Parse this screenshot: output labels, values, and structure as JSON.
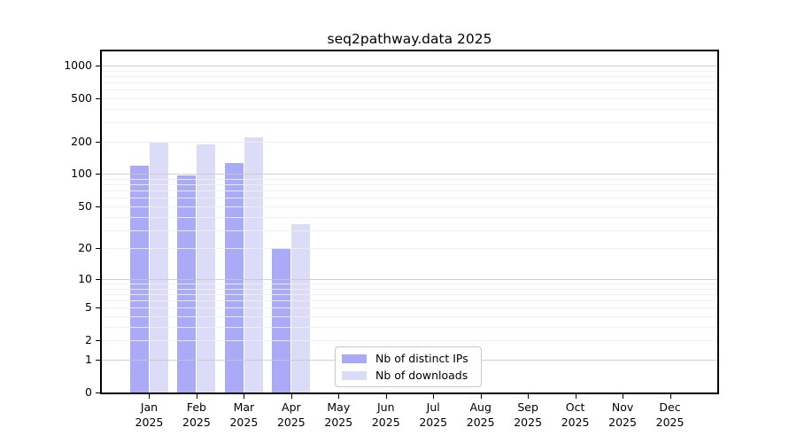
{
  "title": "seq2pathway.data 2025",
  "colors": {
    "distinct_ips": "#aaaaf7",
    "downloads": "#dcdcf9",
    "grid_major": "#c9c9c9",
    "grid_minor": "#efefef",
    "spine": "#000000",
    "background": "#ffffff"
  },
  "legend": {
    "items": [
      {
        "label": "Nb of distinct IPs",
        "color_key": "distinct_ips"
      },
      {
        "label": "Nb of downloads",
        "color_key": "downloads"
      }
    ]
  },
  "chart_data": {
    "type": "bar",
    "title": "seq2pathway.data 2025",
    "categories": [
      "Jan 2025",
      "Feb 2025",
      "Mar 2025",
      "Apr 2025",
      "May 2025",
      "Jun 2025",
      "Jul 2025",
      "Aug 2025",
      "Sep 2025",
      "Oct 2025",
      "Nov 2025",
      "Dec 2025"
    ],
    "x_tick_month": [
      "Jan",
      "Feb",
      "Mar",
      "Apr",
      "May",
      "Jun",
      "Jul",
      "Aug",
      "Sep",
      "Oct",
      "Nov",
      "Dec"
    ],
    "x_tick_year": "2025",
    "series": [
      {
        "name": "Nb of distinct IPs",
        "color_key": "distinct_ips",
        "values": [
          120,
          98,
          126,
          20,
          null,
          null,
          null,
          null,
          null,
          null,
          null,
          null
        ]
      },
      {
        "name": "Nb of downloads",
        "color_key": "downloads",
        "values": [
          200,
          188,
          220,
          34,
          null,
          null,
          null,
          null,
          null,
          null,
          null,
          null
        ]
      }
    ],
    "xlabel": "",
    "ylabel": "",
    "y_scale": "log10(1+value)",
    "y_ticks": [
      0,
      1,
      2,
      5,
      10,
      20,
      50,
      100,
      200,
      500,
      1000
    ],
    "y_minor_gridlines": [
      2,
      3,
      4,
      5,
      6,
      7,
      8,
      9,
      20,
      30,
      40,
      50,
      60,
      70,
      80,
      90,
      200,
      300,
      400,
      500,
      600,
      700,
      800,
      900
    ],
    "y_major_gridlines": [
      1,
      10,
      100,
      1000
    ],
    "ylim": [
      0,
      1350
    ],
    "grid": true,
    "legend_position": "inside lower-center-left"
  }
}
